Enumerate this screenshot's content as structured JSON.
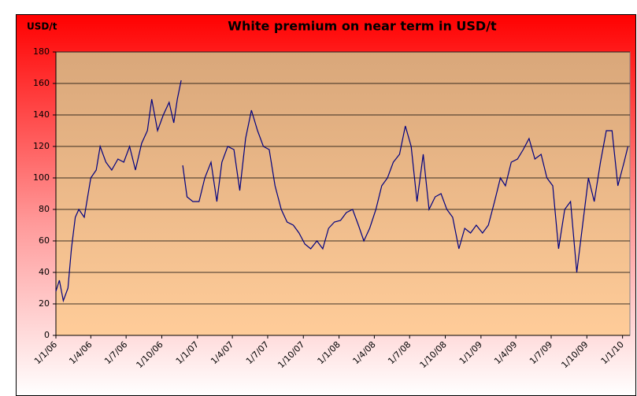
{
  "chart_data": {
    "type": "line",
    "title": "White premium on near term in USD/t",
    "y_label": "USD/t",
    "x": [
      "2006-01-01",
      "2006-01-10",
      "2006-01-20",
      "2006-02-01",
      "2006-02-10",
      "2006-02-20",
      "2006-03-01",
      "2006-03-15",
      "2006-04-01",
      "2006-04-15",
      "2006-04-25",
      "2006-05-10",
      "2006-05-25",
      "2006-06-10",
      "2006-06-25",
      "2006-07-10",
      "2006-07-25",
      "2006-08-10",
      "2006-08-25",
      "2006-09-05",
      "2006-09-20",
      "2006-10-05",
      "2006-10-20",
      "2006-11-01",
      "2006-11-10",
      "2006-11-20",
      "2006-11-22",
      "2006-11-24",
      "2006-12-05",
      "2006-12-20",
      "2007-01-05",
      "2007-01-20",
      "2007-02-05",
      "2007-02-20",
      "2007-03-05",
      "2007-03-20",
      "2007-04-05",
      "2007-04-20",
      "2007-05-05",
      "2007-05-20",
      "2007-06-05",
      "2007-06-20",
      "2007-07-05",
      "2007-07-20",
      "2007-08-05",
      "2007-08-20",
      "2007-09-05",
      "2007-09-20",
      "2007-10-05",
      "2007-10-20",
      "2007-11-05",
      "2007-11-20",
      "2007-12-05",
      "2007-12-20",
      "2008-01-05",
      "2008-01-20",
      "2008-02-05",
      "2008-02-20",
      "2008-03-05",
      "2008-03-20",
      "2008-04-05",
      "2008-04-20",
      "2008-05-05",
      "2008-05-20",
      "2008-06-05",
      "2008-06-20",
      "2008-07-05",
      "2008-07-20",
      "2008-08-05",
      "2008-08-20",
      "2008-09-05",
      "2008-09-20",
      "2008-10-05",
      "2008-10-20",
      "2008-11-05",
      "2008-11-20",
      "2008-12-05",
      "2008-12-20",
      "2009-01-05",
      "2009-01-20",
      "2009-02-05",
      "2009-02-20",
      "2009-03-05",
      "2009-03-20",
      "2009-04-05",
      "2009-04-20",
      "2009-05-05",
      "2009-05-20",
      "2009-06-05",
      "2009-06-20",
      "2009-07-05",
      "2009-07-20",
      "2009-08-05",
      "2009-08-20",
      "2009-09-05",
      "2009-09-20",
      "2009-10-05",
      "2009-10-20",
      "2009-11-05",
      "2009-11-20",
      "2009-12-05",
      "2009-12-20",
      "2010-01-05",
      "2010-01-15"
    ],
    "series": [
      {
        "color": "#000080",
        "values": [
          28,
          35,
          22,
          30,
          55,
          75,
          80,
          75,
          100,
          105,
          120,
          110,
          105,
          112,
          110,
          120,
          105,
          122,
          130,
          150,
          130,
          140,
          148,
          135,
          150,
          162,
          null,
          108,
          88,
          85,
          85,
          100,
          110,
          85,
          110,
          120,
          118,
          92,
          125,
          143,
          130,
          120,
          118,
          95,
          80,
          72,
          70,
          65,
          58,
          55,
          60,
          55,
          68,
          72,
          73,
          78,
          80,
          70,
          60,
          68,
          80,
          95,
          100,
          110,
          115,
          133,
          120,
          85,
          115,
          80,
          88,
          90,
          80,
          75,
          55,
          68,
          65,
          70,
          65,
          70,
          85,
          100,
          95,
          110,
          112,
          118,
          125,
          112,
          115,
          100,
          95,
          55,
          80,
          85,
          40,
          70,
          100,
          85,
          110,
          130,
          130,
          95,
          110,
          120
        ]
      }
    ],
    "xlim": [
      "2006-01-01",
      "2010-01-20"
    ],
    "xticks": [
      {
        "value": "2006-01-01",
        "label": "1/1/06"
      },
      {
        "value": "2006-04-01",
        "label": "1/4/06"
      },
      {
        "value": "2006-07-01",
        "label": "1/7/06"
      },
      {
        "value": "2006-10-01",
        "label": "1/10/06"
      },
      {
        "value": "2007-01-01",
        "label": "1/1/07"
      },
      {
        "value": "2007-04-01",
        "label": "1/4/07"
      },
      {
        "value": "2007-07-01",
        "label": "1/7/07"
      },
      {
        "value": "2007-10-01",
        "label": "1/10/07"
      },
      {
        "value": "2008-01-01",
        "label": "1/1/08"
      },
      {
        "value": "2008-04-01",
        "label": "1/4/08"
      },
      {
        "value": "2008-07-01",
        "label": "1/7/08"
      },
      {
        "value": "2008-10-01",
        "label": "1/10/08"
      },
      {
        "value": "2009-01-01",
        "label": "1/1/09"
      },
      {
        "value": "2009-04-01",
        "label": "1/4/09"
      },
      {
        "value": "2009-07-01",
        "label": "1/7/09"
      },
      {
        "value": "2009-10-01",
        "label": "1/10/09"
      },
      {
        "value": "2010-01-01",
        "label": "1/1/10"
      }
    ],
    "ylim": [
      0,
      180
    ],
    "yticks": [
      0,
      20,
      40,
      60,
      80,
      100,
      120,
      140,
      160,
      180
    ],
    "grid": true
  }
}
